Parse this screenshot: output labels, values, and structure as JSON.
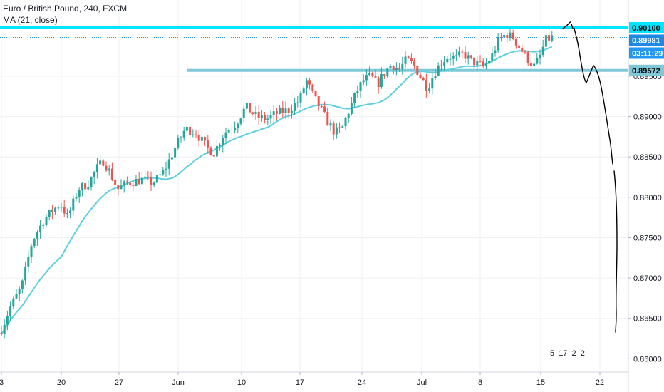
{
  "header": {
    "symbol_title": "Euro / British Pound, 240, FXCM",
    "indicator_label": "MA (21, close)"
  },
  "price_axis": {
    "tick_labels": [
      "0.89500",
      "0.89000",
      "0.88500",
      "0.88000",
      "0.87500",
      "0.87000",
      "0.86500",
      "0.86000"
    ],
    "ticks": [
      0.895,
      0.89,
      0.885,
      0.88,
      0.875,
      0.87,
      0.865,
      0.86
    ]
  },
  "time_axis": {
    "tick_labels": [
      "3",
      "20",
      "27",
      "Jun",
      "10",
      "17",
      "24",
      "Jul",
      "8",
      "15",
      "22"
    ]
  },
  "price_tags": {
    "resistance": "0.90100",
    "last_price": "0.89981",
    "countdown": "03:11:29",
    "support": "0.89572"
  },
  "event_badges": {
    "count_a": "5",
    "count_b": "17",
    "count_c": "2",
    "count_d": "2"
  },
  "colors": {
    "up": "#26a69a",
    "down": "#ef5350",
    "ma": "#5ccfe0",
    "resistance_line": "#00e5ff",
    "support_line": "#7ec8d8",
    "drawing": "#000000",
    "last_price_tag": "#1e88e5",
    "countdown_tag": "#2196f3"
  },
  "chart_data": {
    "type": "candlestick",
    "ylim": [
      0.8595,
      0.9025
    ],
    "levels": {
      "resistance": 0.901,
      "support": 0.89572
    },
    "last_price": 0.89981,
    "ma_period": 21,
    "x_labels": [
      "3",
      "20",
      "27",
      "Jun",
      "10",
      "17",
      "24",
      "Jul",
      "8",
      "15",
      "22"
    ],
    "anchors": [
      [
        0,
        0.8632
      ],
      [
        15,
        0.8665
      ],
      [
        30,
        0.8688
      ],
      [
        45,
        0.8745
      ],
      [
        60,
        0.877
      ],
      [
        75,
        0.8785
      ],
      [
        85,
        0.8792
      ],
      [
        95,
        0.8775
      ],
      [
        110,
        0.881
      ],
      [
        125,
        0.8818
      ],
      [
        135,
        0.8835
      ],
      [
        145,
        0.8845
      ],
      [
        155,
        0.883
      ],
      [
        165,
        0.881
      ],
      [
        180,
        0.8818
      ],
      [
        200,
        0.8822
      ],
      [
        215,
        0.8818
      ],
      [
        230,
        0.8832
      ],
      [
        245,
        0.886
      ],
      [
        260,
        0.8885
      ],
      [
        275,
        0.888
      ],
      [
        290,
        0.8862
      ],
      [
        300,
        0.8855
      ],
      [
        315,
        0.888
      ],
      [
        330,
        0.889
      ],
      [
        345,
        0.8912
      ],
      [
        360,
        0.89
      ],
      [
        375,
        0.8897
      ],
      [
        390,
        0.8905
      ],
      [
        405,
        0.8908
      ],
      [
        420,
        0.892
      ],
      [
        430,
        0.8945
      ],
      [
        440,
        0.8925
      ],
      [
        450,
        0.891
      ],
      [
        460,
        0.8893
      ],
      [
        470,
        0.888
      ],
      [
        480,
        0.8885
      ],
      [
        490,
        0.8908
      ],
      [
        500,
        0.893
      ],
      [
        510,
        0.8945
      ],
      [
        520,
        0.895
      ],
      [
        530,
        0.894
      ],
      [
        540,
        0.8955
      ],
      [
        550,
        0.8965
      ],
      [
        560,
        0.8958
      ],
      [
        570,
        0.897
      ],
      [
        580,
        0.8965
      ],
      [
        590,
        0.895
      ],
      [
        600,
        0.8935
      ],
      [
        610,
        0.8955
      ],
      [
        620,
        0.8968
      ],
      [
        630,
        0.8975
      ],
      [
        640,
        0.8972
      ],
      [
        650,
        0.8978
      ],
      [
        660,
        0.897
      ],
      [
        670,
        0.8965
      ],
      [
        680,
        0.8962
      ],
      [
        690,
        0.8975
      ],
      [
        700,
        0.8995
      ],
      [
        710,
        0.9002
      ],
      [
        720,
        0.8998
      ],
      [
        730,
        0.8985
      ],
      [
        740,
        0.8972
      ],
      [
        750,
        0.8962
      ],
      [
        758,
        0.8975
      ],
      [
        766,
        0.8995
      ],
      [
        775,
        0.8998
      ]
    ]
  }
}
